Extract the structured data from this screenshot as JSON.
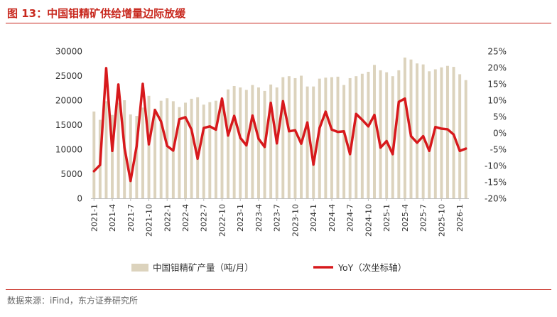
{
  "header": {
    "title": "图 13：中国钼精矿供给增量边际放缓"
  },
  "footer": {
    "source": "数据来源：iFind，东方证券研究所"
  },
  "colors": {
    "bar": "#dcd3bd",
    "line": "#d7191c",
    "accent": "#c8281e"
  },
  "chart_data": {
    "type": "bar+line",
    "grid": false,
    "legend_position": "bottom-center",
    "left_axis": {
      "ylim": [
        0,
        30000
      ],
      "ticks": [
        "0",
        "5000",
        "10000",
        "15000",
        "20000",
        "25000",
        "30000"
      ]
    },
    "right_axis": {
      "ylim": [
        -20,
        25
      ],
      "ticks": [
        "-20%",
        "-15%",
        "-10%",
        "-5%",
        "0%",
        "5%",
        "10%",
        "15%",
        "20%",
        "25%"
      ]
    },
    "x_tick_labels": [
      "2021-1",
      "2021-4",
      "2021-7",
      "2021-10",
      "2022-1",
      "2022-4",
      "2022-7",
      "2022-10",
      "2023-1",
      "2023-4",
      "2023-7",
      "2023-10",
      "2024-1",
      "2024-4",
      "2024-7",
      "2024-10",
      "2025-1",
      "2025-4",
      "2025-7",
      "2025-10",
      "2026-1"
    ],
    "categories": [
      "2021-1",
      "2021-2",
      "2021-3",
      "2021-4",
      "2021-5",
      "2021-6",
      "2021-7",
      "2021-8",
      "2021-9",
      "2021-10",
      "2021-11",
      "2021-12",
      "2022-1",
      "2022-2",
      "2022-3",
      "2022-4",
      "2022-5",
      "2022-6",
      "2022-7",
      "2022-8",
      "2022-9",
      "2022-10",
      "2022-11",
      "2022-12",
      "2023-1",
      "2023-2",
      "2023-3",
      "2023-4",
      "2023-5",
      "2023-6",
      "2023-7",
      "2023-8",
      "2023-9",
      "2023-10",
      "2023-11",
      "2023-12",
      "2024-1",
      "2024-2",
      "2024-3",
      "2024-4",
      "2024-5",
      "2024-6",
      "2024-7",
      "2024-8",
      "2024-9",
      "2024-10",
      "2024-11",
      "2024-12",
      "2025-1",
      "2025-2",
      "2025-3",
      "2025-4",
      "2025-5",
      "2025-6",
      "2025-7",
      "2025-8",
      "2025-9",
      "2025-10",
      "2025-11",
      "2025-12",
      "2026-1",
      "2026-2"
    ],
    "series": [
      {
        "name": "中国钼精矿产量（吨/月）",
        "axis": "left",
        "kind": "bar",
        "values": [
          17700,
          16000,
          19800,
          17000,
          19500,
          20000,
          17100,
          16800,
          18500,
          20900,
          18300,
          19900,
          20400,
          19800,
          18600,
          19500,
          20300,
          20600,
          19100,
          19600,
          19900,
          20100,
          22200,
          22900,
          22600,
          22100,
          23100,
          22600,
          21900,
          23200,
          22600,
          24700,
          24900,
          24500,
          25000,
          22800,
          22800,
          24400,
          24600,
          24700,
          24800,
          23100,
          24500,
          24900,
          25400,
          25800,
          27200,
          26100,
          25700,
          24900,
          26100,
          28700,
          28300,
          27500,
          27300,
          25900,
          26300,
          26700,
          27000,
          26800,
          25300,
          24100
        ]
      },
      {
        "name": "YoY（次坐标轴）",
        "axis": "right",
        "kind": "line",
        "values": [
          -11.7,
          -9.8,
          19.8,
          -5.5,
          14.8,
          -4.5,
          -14.7,
          -4.0,
          15.0,
          -3.5,
          7.0,
          3.5,
          -4.0,
          -5.4,
          4.2,
          4.8,
          1.0,
          -7.9,
          1.5,
          2.0,
          1.0,
          10.5,
          -0.8,
          5.2,
          -1.5,
          -3.8,
          5.3,
          -1.8,
          -4.3,
          9.2,
          -3.2,
          9.7,
          0.5,
          0.8,
          -3.3,
          3.2,
          -9.7,
          1.5,
          6.5,
          1.0,
          0.3,
          0.5,
          -6.5,
          5.8,
          4.0,
          2.0,
          5.5,
          -4.5,
          -2.5,
          -6.5,
          9.5,
          10.5,
          -1.0,
          -3.0,
          -1.0,
          -5.5,
          1.8,
          1.3,
          1.1,
          -0.5,
          -5.5,
          -4.8
        ]
      }
    ]
  }
}
